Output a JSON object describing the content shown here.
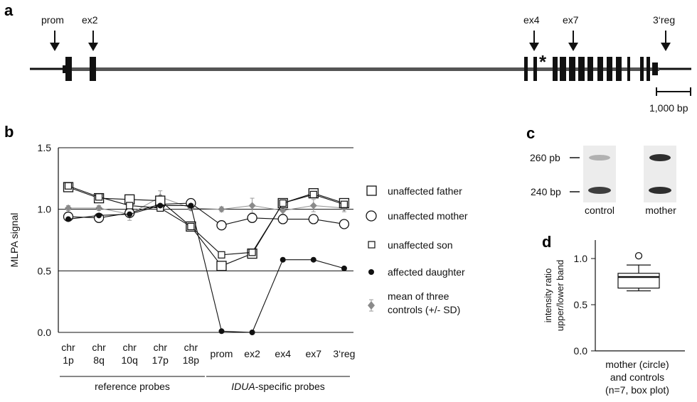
{
  "panel_labels": {
    "a": "a",
    "b": "b",
    "c": "c",
    "d": "d"
  },
  "gene_map": {
    "arrows": [
      "prom",
      "ex2",
      "ex4",
      "ex7",
      "3‘reg"
    ],
    "asterisk": "*",
    "scalebar_label": "1,000 bp"
  },
  "legend": {
    "father": "unaffected father",
    "mother": "unaffected mother",
    "son": "unaffected son",
    "daughter": "affected daughter",
    "controls_line1": "mean of three",
    "controls_line2": "controls (+/- SD)"
  },
  "gel": {
    "band_top": "260 pb",
    "band_bottom": "240 bp",
    "lanes": [
      "control",
      "mother"
    ]
  },
  "groups": {
    "reference": "reference probes",
    "idua_italic": "IDUA",
    "idua_rest": "-specific probes"
  },
  "chart_data": [
    {
      "id": "b",
      "type": "line",
      "ylabel": "MLPA signal",
      "ylim": [
        0,
        1.5
      ],
      "yticks": [
        "0.0",
        "0.5",
        "1.0",
        "1.5"
      ],
      "categories": [
        [
          "chr",
          "1p"
        ],
        [
          "chr",
          "8q"
        ],
        [
          "chr",
          "10q"
        ],
        [
          "chr",
          "17p"
        ],
        [
          "chr",
          "18p"
        ],
        [
          "prom"
        ],
        [
          "ex2"
        ],
        [
          "ex4"
        ],
        [
          "ex7"
        ],
        [
          "3‘reg"
        ]
      ],
      "series": [
        {
          "name": "unaffected father",
          "marker": "big-square",
          "values": [
            1.18,
            1.09,
            1.08,
            1.07,
            0.86,
            0.54,
            0.64,
            1.05,
            1.13,
            1.05
          ]
        },
        {
          "name": "unaffected mother",
          "marker": "circle",
          "values": [
            0.94,
            0.93,
            0.97,
            1.04,
            1.05,
            0.87,
            0.93,
            0.92,
            0.92,
            0.88
          ]
        },
        {
          "name": "unaffected son",
          "marker": "small-square",
          "values": [
            1.19,
            1.1,
            1.03,
            1.01,
            0.86,
            0.63,
            0.65,
            1.05,
            1.12,
            1.04
          ]
        },
        {
          "name": "affected daughter",
          "marker": "dot",
          "values": [
            0.92,
            0.95,
            0.96,
            1.03,
            1.03,
            0.01,
            0.0,
            0.59,
            0.59,
            0.52
          ]
        },
        {
          "name": "mean of three controls (+/- SD)",
          "marker": "diamond",
          "values": [
            1.01,
            1.01,
            0.96,
            1.1,
            1.01,
            1.0,
            1.03,
            0.99,
            1.03,
            1.01
          ],
          "sd": [
            0.02,
            0.02,
            0.05,
            0.05,
            0.02,
            0.02,
            0.06,
            0.03,
            0.05,
            0.03
          ]
        }
      ]
    },
    {
      "id": "d",
      "type": "box",
      "ylabel_line1": "intensity ratio",
      "ylabel_line2": "upper/lower band",
      "ylim": [
        0,
        1.2
      ],
      "yticks": [
        "0.0",
        "0.5",
        "1.0"
      ],
      "xlabel_lines": [
        "mother (circle)",
        "and controls",
        "(n=7, box plot)"
      ],
      "box": {
        "whisker_low": 0.65,
        "q1": 0.68,
        "median": 0.8,
        "q3": 0.84,
        "whisker_high": 0.93
      },
      "outlier": 1.03
    }
  ]
}
